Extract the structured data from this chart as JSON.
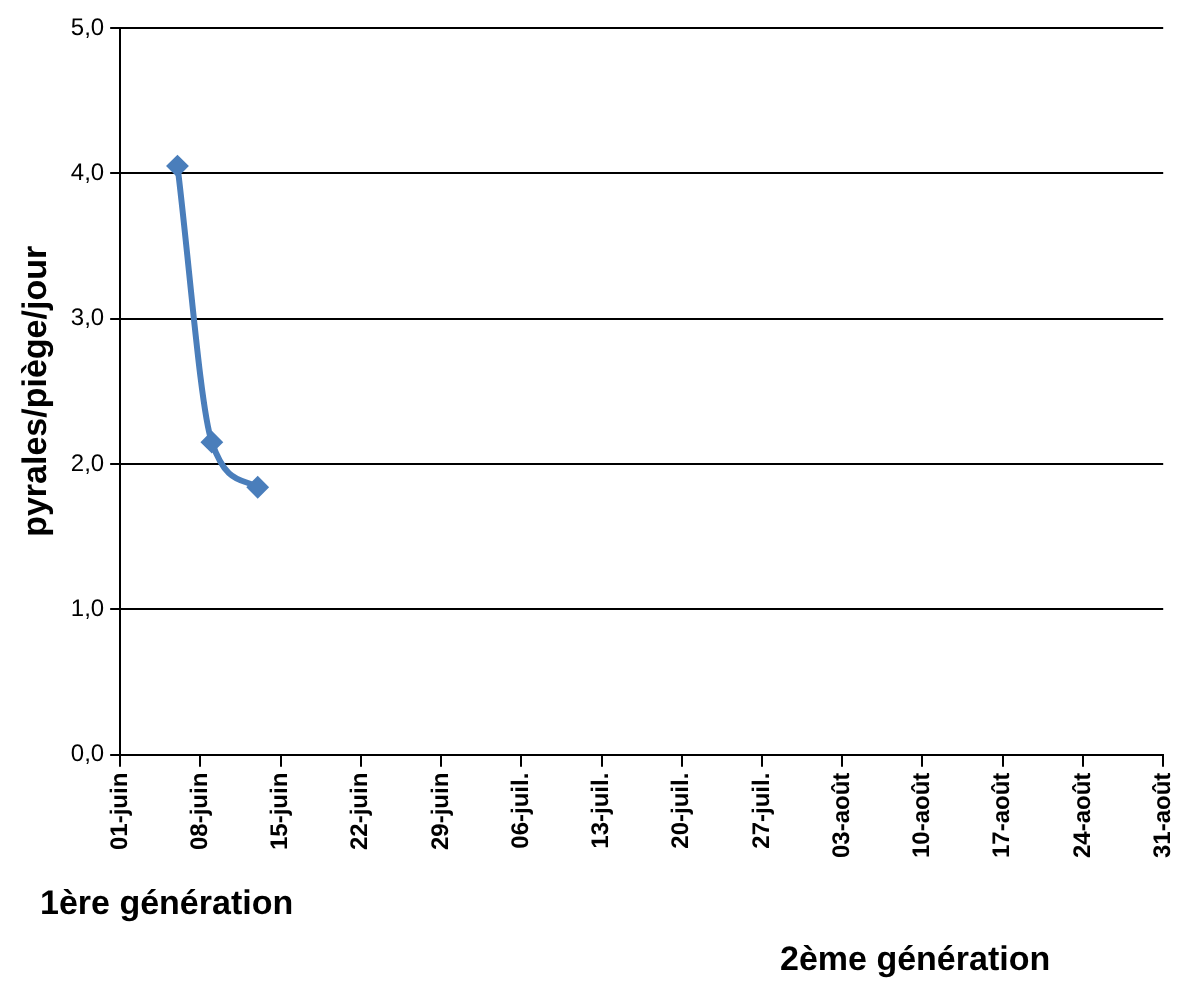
{
  "chart_data": {
    "type": "line",
    "ylabel": "pyrales/piège/jour",
    "x": [
      "--06-06",
      "--06-09",
      "--06-13"
    ],
    "series": [
      {
        "color": "#4a7ebb",
        "values": [
          4.05,
          2.15,
          1.84
        ]
      }
    ],
    "xlim": [
      "--06-01",
      "--08-31"
    ],
    "xticks": [
      {
        "value": "--06-01",
        "label": "01-juin"
      },
      {
        "value": "--06-08",
        "label": "08-juin"
      },
      {
        "value": "--06-15",
        "label": "15-juin"
      },
      {
        "value": "--06-22",
        "label": "22-juin"
      },
      {
        "value": "--06-29",
        "label": "29-juin"
      },
      {
        "value": "--07-06",
        "label": "06-juil."
      },
      {
        "value": "--07-13",
        "label": "13-juil."
      },
      {
        "value": "--07-20",
        "label": "20-juil."
      },
      {
        "value": "--07-27",
        "label": "27-juil."
      },
      {
        "value": "--08-03",
        "label": "03-août"
      },
      {
        "value": "--08-10",
        "label": "10-août"
      },
      {
        "value": "--08-17",
        "label": "17-août"
      },
      {
        "value": "--08-24",
        "label": "24-août"
      },
      {
        "value": "--08-31",
        "label": "31-août"
      }
    ],
    "ylim": [
      0,
      5
    ],
    "yticks": [
      {
        "value": 0,
        "label": "0,0"
      },
      {
        "value": 1,
        "label": "1,0"
      },
      {
        "value": 2,
        "label": "2,0"
      },
      {
        "value": 3,
        "label": "3,0"
      },
      {
        "value": 4,
        "label": "4,0"
      },
      {
        "value": 5,
        "label": "5,0"
      }
    ],
    "grid": "y",
    "legend": false,
    "marker": "diamond",
    "line_style": "solid",
    "annotations": [
      "1ère génération",
      "2ème génération"
    ]
  }
}
